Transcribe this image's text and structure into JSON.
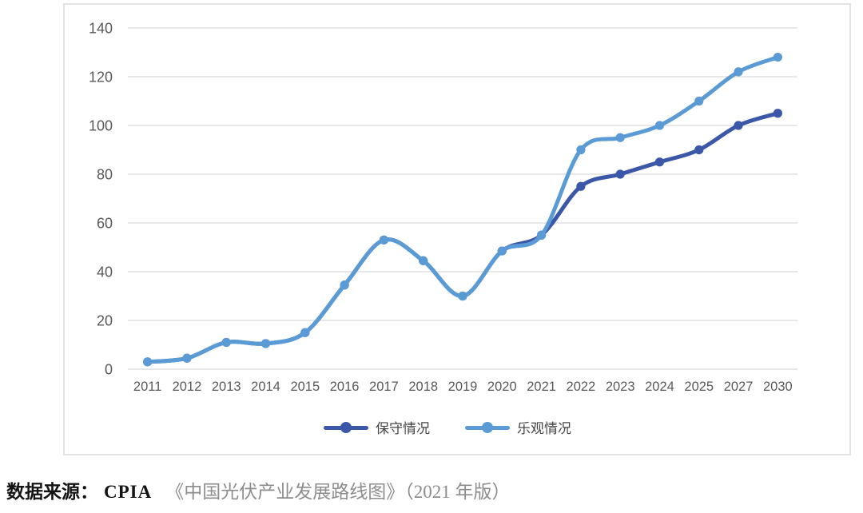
{
  "chart_data": {
    "type": "line",
    "title": "",
    "xlabel": "",
    "ylabel": "",
    "categories": [
      "2011",
      "2012",
      "2013",
      "2014",
      "2015",
      "2016",
      "2017",
      "2018",
      "2019",
      "2020",
      "2021",
      "2022",
      "2023",
      "2024",
      "2025",
      "2027",
      "2030"
    ],
    "series": [
      {
        "name": "保守情况",
        "color": "#3B57A8",
        "marker": "circle",
        "values": [
          3,
          4.5,
          11,
          10.5,
          15,
          34.5,
          53,
          44.5,
          30,
          48.5,
          55,
          75,
          80,
          85,
          90,
          100,
          105
        ]
      },
      {
        "name": "乐观情况",
        "color": "#5B9BD5",
        "marker": "circle",
        "values": [
          3,
          4.5,
          11,
          10.5,
          15,
          34.5,
          53,
          44.5,
          30,
          48.5,
          55,
          90,
          95,
          100,
          110,
          122,
          128
        ]
      }
    ],
    "ylim": [
      0,
      140
    ],
    "yticks": [
      0,
      20,
      40,
      60,
      80,
      100,
      120,
      140
    ],
    "grid": "horizontal",
    "smooth": true,
    "legend_position": "bottom"
  },
  "colors": {
    "background": "#FFFFFF",
    "frame_border": "#E4E4E4",
    "gridline": "#D9D9D9",
    "tick_text": "#595959",
    "legend_text": "#454545",
    "conservative_blue": "#3B57A8",
    "optimistic_blue": "#5B9BD5"
  },
  "source": {
    "label": "数据来源：",
    "agency": "CPIA",
    "reference": "《中国光伏产业发展路线图》（2021 年版）"
  }
}
